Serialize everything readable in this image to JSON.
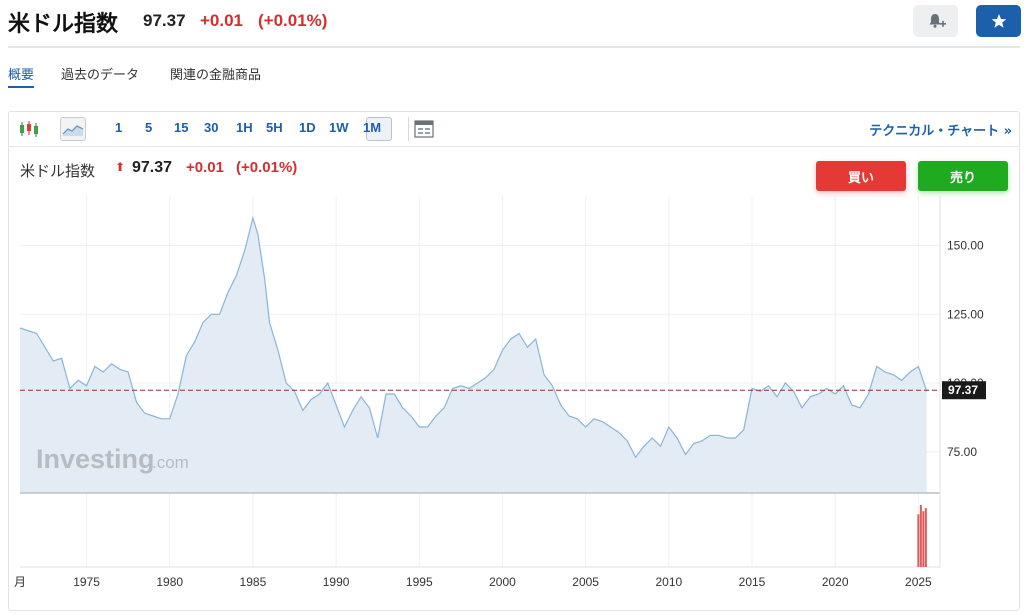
{
  "header": {
    "title": "米ドル指数",
    "price": "97.37",
    "change": "+0.01",
    "change_pct": "(+0.01%)"
  },
  "tabs": [
    {
      "label": "概要",
      "active": true
    },
    {
      "label": "過去のデータ",
      "active": false
    },
    {
      "label": "関連の金融商品",
      "active": false
    }
  ],
  "toolbar": {
    "timeframes": [
      "1",
      "5",
      "15",
      "30",
      "1H",
      "5H",
      "1D",
      "1W",
      "1M"
    ],
    "active_timeframe": "1M",
    "technical_link": "テクニカル・チャート »"
  },
  "legend": {
    "name": "米ドル指数",
    "arrow": "⬆",
    "price": "97.37",
    "change": "+0.01",
    "change_pct": "(+0.01%)"
  },
  "buttons": {
    "buy": "買い",
    "sell": "売り"
  },
  "colors": {
    "up": "#d32f2f",
    "brand_blue": "#1c5fab",
    "line": "#8ab4d8",
    "area_fill": "#e3ecf4",
    "buy": "#e53935",
    "sell": "#1faa1f",
    "volume": "#e05a5a"
  },
  "chart_data": {
    "type": "area",
    "title": "米ドル指数",
    "xlabel": "",
    "ylabel": "",
    "x_start_label": "月",
    "x": [
      1971,
      1972,
      1973,
      1973.5,
      1974,
      1974.5,
      1975,
      1975.5,
      1976,
      1976.5,
      1977,
      1977.5,
      1978,
      1978.5,
      1979,
      1979.5,
      1980,
      1980.5,
      1981,
      1981.5,
      1982,
      1982.5,
      1983,
      1983.5,
      1984,
      1984.5,
      1985,
      1985.3,
      1985.7,
      1986,
      1986.5,
      1987,
      1987.5,
      1988,
      1988.5,
      1989,
      1989.5,
      1990,
      1990.5,
      1991,
      1991.5,
      1992,
      1992.5,
      1993,
      1993.5,
      1994,
      1994.5,
      1995,
      1995.5,
      1996,
      1996.5,
      1997,
      1997.5,
      1998,
      1998.5,
      1999,
      1999.5,
      2000,
      2000.5,
      2001,
      2001.5,
      2002,
      2002.5,
      2003,
      2003.5,
      2004,
      2004.5,
      2005,
      2005.5,
      2006,
      2006.5,
      2007,
      2007.5,
      2008,
      2008.5,
      2009,
      2009.5,
      2010,
      2010.5,
      2011,
      2011.5,
      2012,
      2012.5,
      2013,
      2013.5,
      2014,
      2014.5,
      2015,
      2015.5,
      2016,
      2016.5,
      2017,
      2017.5,
      2018,
      2018.5,
      2019,
      2019.5,
      2020,
      2020.5,
      2021,
      2021.5,
      2022,
      2022.5,
      2023,
      2023.5,
      2024,
      2024.5,
      2025,
      2025.5
    ],
    "y": [
      120,
      118,
      108,
      109,
      98,
      101,
      99,
      106,
      104,
      107,
      105,
      104,
      93,
      89,
      88,
      87,
      87,
      96,
      110,
      115,
      122,
      125,
      125,
      133,
      139,
      148,
      160,
      154,
      138,
      122,
      112,
      100,
      97,
      90,
      94,
      96,
      100,
      92,
      84,
      90,
      95,
      91,
      80,
      96,
      96,
      91,
      88,
      84,
      84,
      88,
      91,
      98,
      99,
      98,
      100,
      102,
      105,
      112,
      116,
      118,
      113,
      116,
      103,
      99,
      92,
      88,
      87,
      84,
      87,
      86,
      84,
      82,
      79,
      73,
      77,
      80,
      77,
      84,
      80,
      74,
      78,
      79,
      81,
      81,
      80,
      80,
      83,
      98,
      97,
      99,
      95,
      100,
      97,
      91,
      95,
      96,
      98,
      96,
      99,
      92,
      91,
      96,
      106,
      104,
      103,
      101,
      104,
      106,
      97
    ],
    "ylim": [
      60,
      168
    ],
    "xlim": [
      1971,
      2026.3
    ],
    "y_ticks": [
      "75.00",
      "100.00",
      "125.00",
      "150.00"
    ],
    "x_ticks": [
      "1975",
      "1980",
      "1985",
      "1990",
      "1995",
      "2000",
      "2005",
      "2010",
      "2015",
      "2020",
      "2025"
    ],
    "last_price_label": "97.37",
    "last_value": 97.37,
    "volume_bars": [
      {
        "x": 2025.0,
        "value": 0.85
      },
      {
        "x": 2025.15,
        "value": 1.0
      },
      {
        "x": 2025.3,
        "value": 0.9
      },
      {
        "x": 2025.45,
        "value": 0.95
      }
    ],
    "grid": true,
    "legend": "top-left",
    "watermark": "Investing.com"
  }
}
